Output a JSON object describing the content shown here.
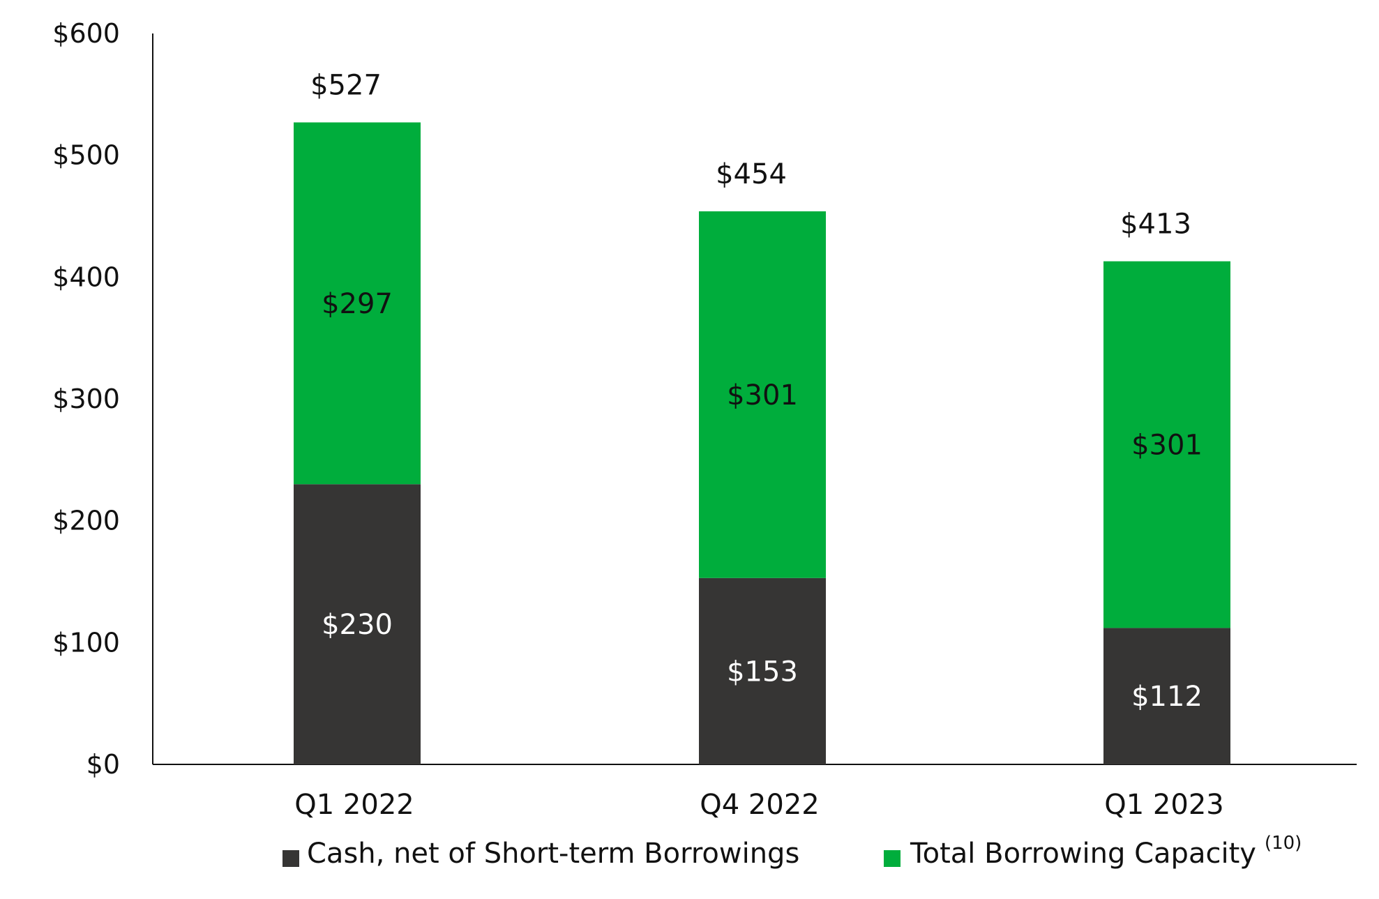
{
  "chart_data": {
    "type": "bar",
    "stacked": true,
    "categories": [
      "Q1 2022",
      "Q4 2022",
      "Q1 2023"
    ],
    "series": [
      {
        "name": "Cash, net of Short-term Borrowings",
        "values": [
          230,
          153,
          112
        ],
        "labels": [
          "$230",
          "$153",
          "$112"
        ],
        "color": "#363534",
        "label_color": "#ffffff"
      },
      {
        "name": "Total Borrowing Capacity",
        "name_superscript": "(10)",
        "values": [
          297,
          301,
          301
        ],
        "labels": [
          "$297",
          "$301",
          "$301"
        ],
        "color": "#00ad3c",
        "label_color": "#111111"
      }
    ],
    "totals": [
      527,
      454,
      413
    ],
    "total_labels": [
      "$527",
      "$454",
      "$413"
    ],
    "y_ticks": [
      0,
      100,
      200,
      300,
      400,
      500,
      600
    ],
    "y_tick_labels": [
      "$0",
      "$100",
      "$200",
      "$300",
      "$400",
      "$500",
      "$600"
    ],
    "ylim": [
      0,
      600
    ],
    "grid": false,
    "legend_position": "bottom"
  }
}
